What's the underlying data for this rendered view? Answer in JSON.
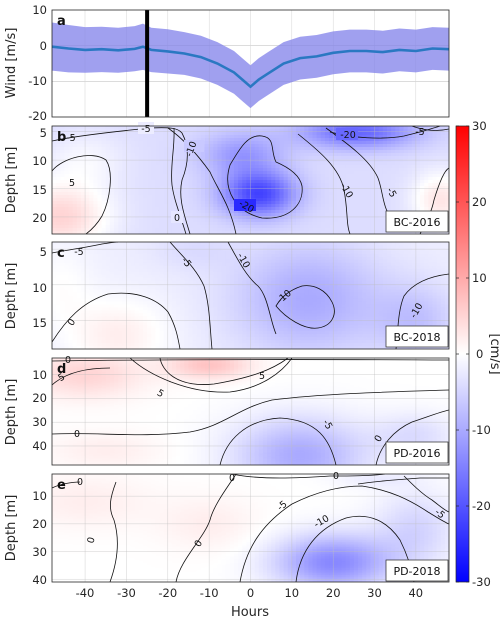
{
  "chart_data": [
    {
      "panel": "a",
      "type": "line",
      "ylabel": "Wind [m/s]",
      "xlim": [
        -48,
        48
      ],
      "ylim": [
        -20,
        10
      ],
      "yticks": [
        10,
        0,
        -10,
        -20
      ],
      "marker_x": -25,
      "line_color": "#2a78c2",
      "band_color": "#8080ea",
      "x": [
        -48,
        -44,
        -40,
        -36,
        -32,
        -28,
        -26,
        -24,
        -20,
        -16,
        -12,
        -8,
        -4,
        -2,
        0,
        2,
        4,
        8,
        12,
        16,
        20,
        24,
        28,
        32,
        36,
        40,
        44,
        48
      ],
      "mean": [
        -0.3,
        -0.8,
        -1.2,
        -1.0,
        -1.3,
        -0.9,
        -0.3,
        -1.2,
        -1.6,
        -2.2,
        -3.2,
        -5.0,
        -7.5,
        -9.5,
        -11.5,
        -9.5,
        -8.0,
        -5.0,
        -3.5,
        -3.0,
        -2.0,
        -1.5,
        -1.5,
        -1.8,
        -1.2,
        -1.5,
        -0.8,
        -1.0
      ],
      "upper": [
        6.5,
        5.8,
        5.2,
        5.3,
        5.0,
        5.5,
        6.2,
        5.0,
        4.6,
        3.8,
        2.8,
        1.0,
        -1.5,
        -3.5,
        -5.5,
        -3.5,
        -2.0,
        1.0,
        2.5,
        3.0,
        4.0,
        4.5,
        4.5,
        4.2,
        4.8,
        4.5,
        5.2,
        5.0
      ],
      "lower": [
        -7.0,
        -7.5,
        -7.6,
        -7.4,
        -7.6,
        -7.2,
        -6.8,
        -7.4,
        -7.8,
        -8.2,
        -9.2,
        -11.0,
        -13.5,
        -15.5,
        -17.5,
        -15.5,
        -14.0,
        -11.0,
        -9.5,
        -9.0,
        -8.0,
        -7.5,
        -7.5,
        -7.8,
        -7.2,
        -7.5,
        -6.8,
        -7.0
      ]
    },
    {
      "panel": "b",
      "type": "heatmap",
      "label": "BC-2016",
      "ylabel": "Depth [m]",
      "ylim": [
        4,
        23
      ],
      "yticks": [
        5,
        10,
        15,
        20
      ],
      "contour_levels": [
        5,
        0,
        -5,
        -10,
        -20
      ],
      "contour_labels": [
        "-5",
        "-10",
        "-20",
        "-5",
        "0",
        "5",
        "-20",
        "-10",
        "-5",
        "-5"
      ],
      "field": {
        "base": -4,
        "blobs": [
          {
            "t": -46,
            "z": 20,
            "st": 12,
            "sz": 6,
            "a": 9
          },
          {
            "t": -40,
            "z": 10,
            "st": 10,
            "sz": 5,
            "a": 3
          },
          {
            "t": 2,
            "z": 16,
            "st": 9,
            "sz": 4,
            "a": -18
          },
          {
            "t": -2,
            "z": 9,
            "st": 10,
            "sz": 4,
            "a": -8
          },
          {
            "t": 26,
            "z": 5,
            "st": 14,
            "sz": 3,
            "a": -14
          },
          {
            "t": 46,
            "z": 17,
            "st": 7,
            "sz": 5,
            "a": 7
          }
        ]
      }
    },
    {
      "panel": "c",
      "type": "heatmap",
      "label": "BC-2018",
      "ylabel": "Depth [m]",
      "ylim": [
        4,
        19
      ],
      "yticks": [
        5,
        10,
        15
      ],
      "contour_levels": [
        0,
        -5,
        -10
      ],
      "contour_labels": [
        "-5",
        "-5",
        "-10",
        "0",
        "-10",
        "-10"
      ],
      "field": {
        "base": -2,
        "blobs": [
          {
            "t": -32,
            "z": 17,
            "st": 12,
            "sz": 5,
            "a": 4
          },
          {
            "t": -46,
            "z": 10,
            "st": 8,
            "sz": 6,
            "a": 2
          },
          {
            "t": 14,
            "z": 12,
            "st": 18,
            "sz": 8,
            "a": -8
          },
          {
            "t": 40,
            "z": 15,
            "st": 10,
            "sz": 5,
            "a": -5
          },
          {
            "t": -14,
            "z": 5,
            "st": 10,
            "sz": 3,
            "a": -2
          }
        ]
      }
    },
    {
      "panel": "d",
      "type": "heatmap",
      "label": "PD-2016",
      "ylabel": "Depth [m]",
      "ylim": [
        3,
        48
      ],
      "yticks": [
        10,
        20,
        30,
        40
      ],
      "contour_levels": [
        5,
        0,
        -5
      ],
      "contour_labels": [
        "0",
        "5",
        "5",
        "5",
        "0",
        "-5",
        "0"
      ],
      "field": {
        "base": 0,
        "blobs": [
          {
            "t": -40,
            "z": 10,
            "st": 14,
            "sz": 10,
            "a": 5
          },
          {
            "t": -10,
            "z": 6,
            "st": 10,
            "sz": 6,
            "a": 7
          },
          {
            "t": 12,
            "z": 44,
            "st": 16,
            "sz": 16,
            "a": -10
          },
          {
            "t": 40,
            "z": 36,
            "st": 10,
            "sz": 10,
            "a": -4
          },
          {
            "t": -35,
            "z": 42,
            "st": 14,
            "sz": 8,
            "a": 2
          }
        ]
      }
    },
    {
      "panel": "e",
      "type": "heatmap",
      "label": "PD-2018",
      "xlabel": "Hours",
      "ylabel": "Depth [m]",
      "ylim": [
        2,
        41
      ],
      "yticks": [
        10,
        20,
        30,
        40
      ],
      "xticks": [
        -40,
        -30,
        -20,
        -10,
        0,
        10,
        20,
        30,
        40
      ],
      "contour_levels": [
        0,
        -5,
        -10
      ],
      "contour_labels": [
        "0",
        "0",
        "0",
        "0",
        "0",
        "-5",
        "-10",
        "-5"
      ],
      "field": {
        "base": 0,
        "blobs": [
          {
            "t": -40,
            "z": 12,
            "st": 16,
            "sz": 10,
            "a": 2
          },
          {
            "t": -10,
            "z": 20,
            "st": 12,
            "sz": 10,
            "a": 2
          },
          {
            "t": 20,
            "z": 34,
            "st": 14,
            "sz": 10,
            "a": -14
          },
          {
            "t": 40,
            "z": 22,
            "st": 10,
            "sz": 14,
            "a": -5
          },
          {
            "t": 30,
            "z": 4,
            "st": 10,
            "sz": 3,
            "a": -2
          }
        ]
      }
    }
  ],
  "colorbar": {
    "unit": "[cm/s]",
    "ticks": [
      30,
      20,
      10,
      0,
      -10,
      -20,
      -30
    ],
    "range": [
      -30,
      30
    ]
  },
  "colors": {
    "positive": "#ff0000",
    "negative": "#0000ff",
    "neutral": "#ffffff",
    "contour": "#111111",
    "grid": "#b9b9b9"
  }
}
